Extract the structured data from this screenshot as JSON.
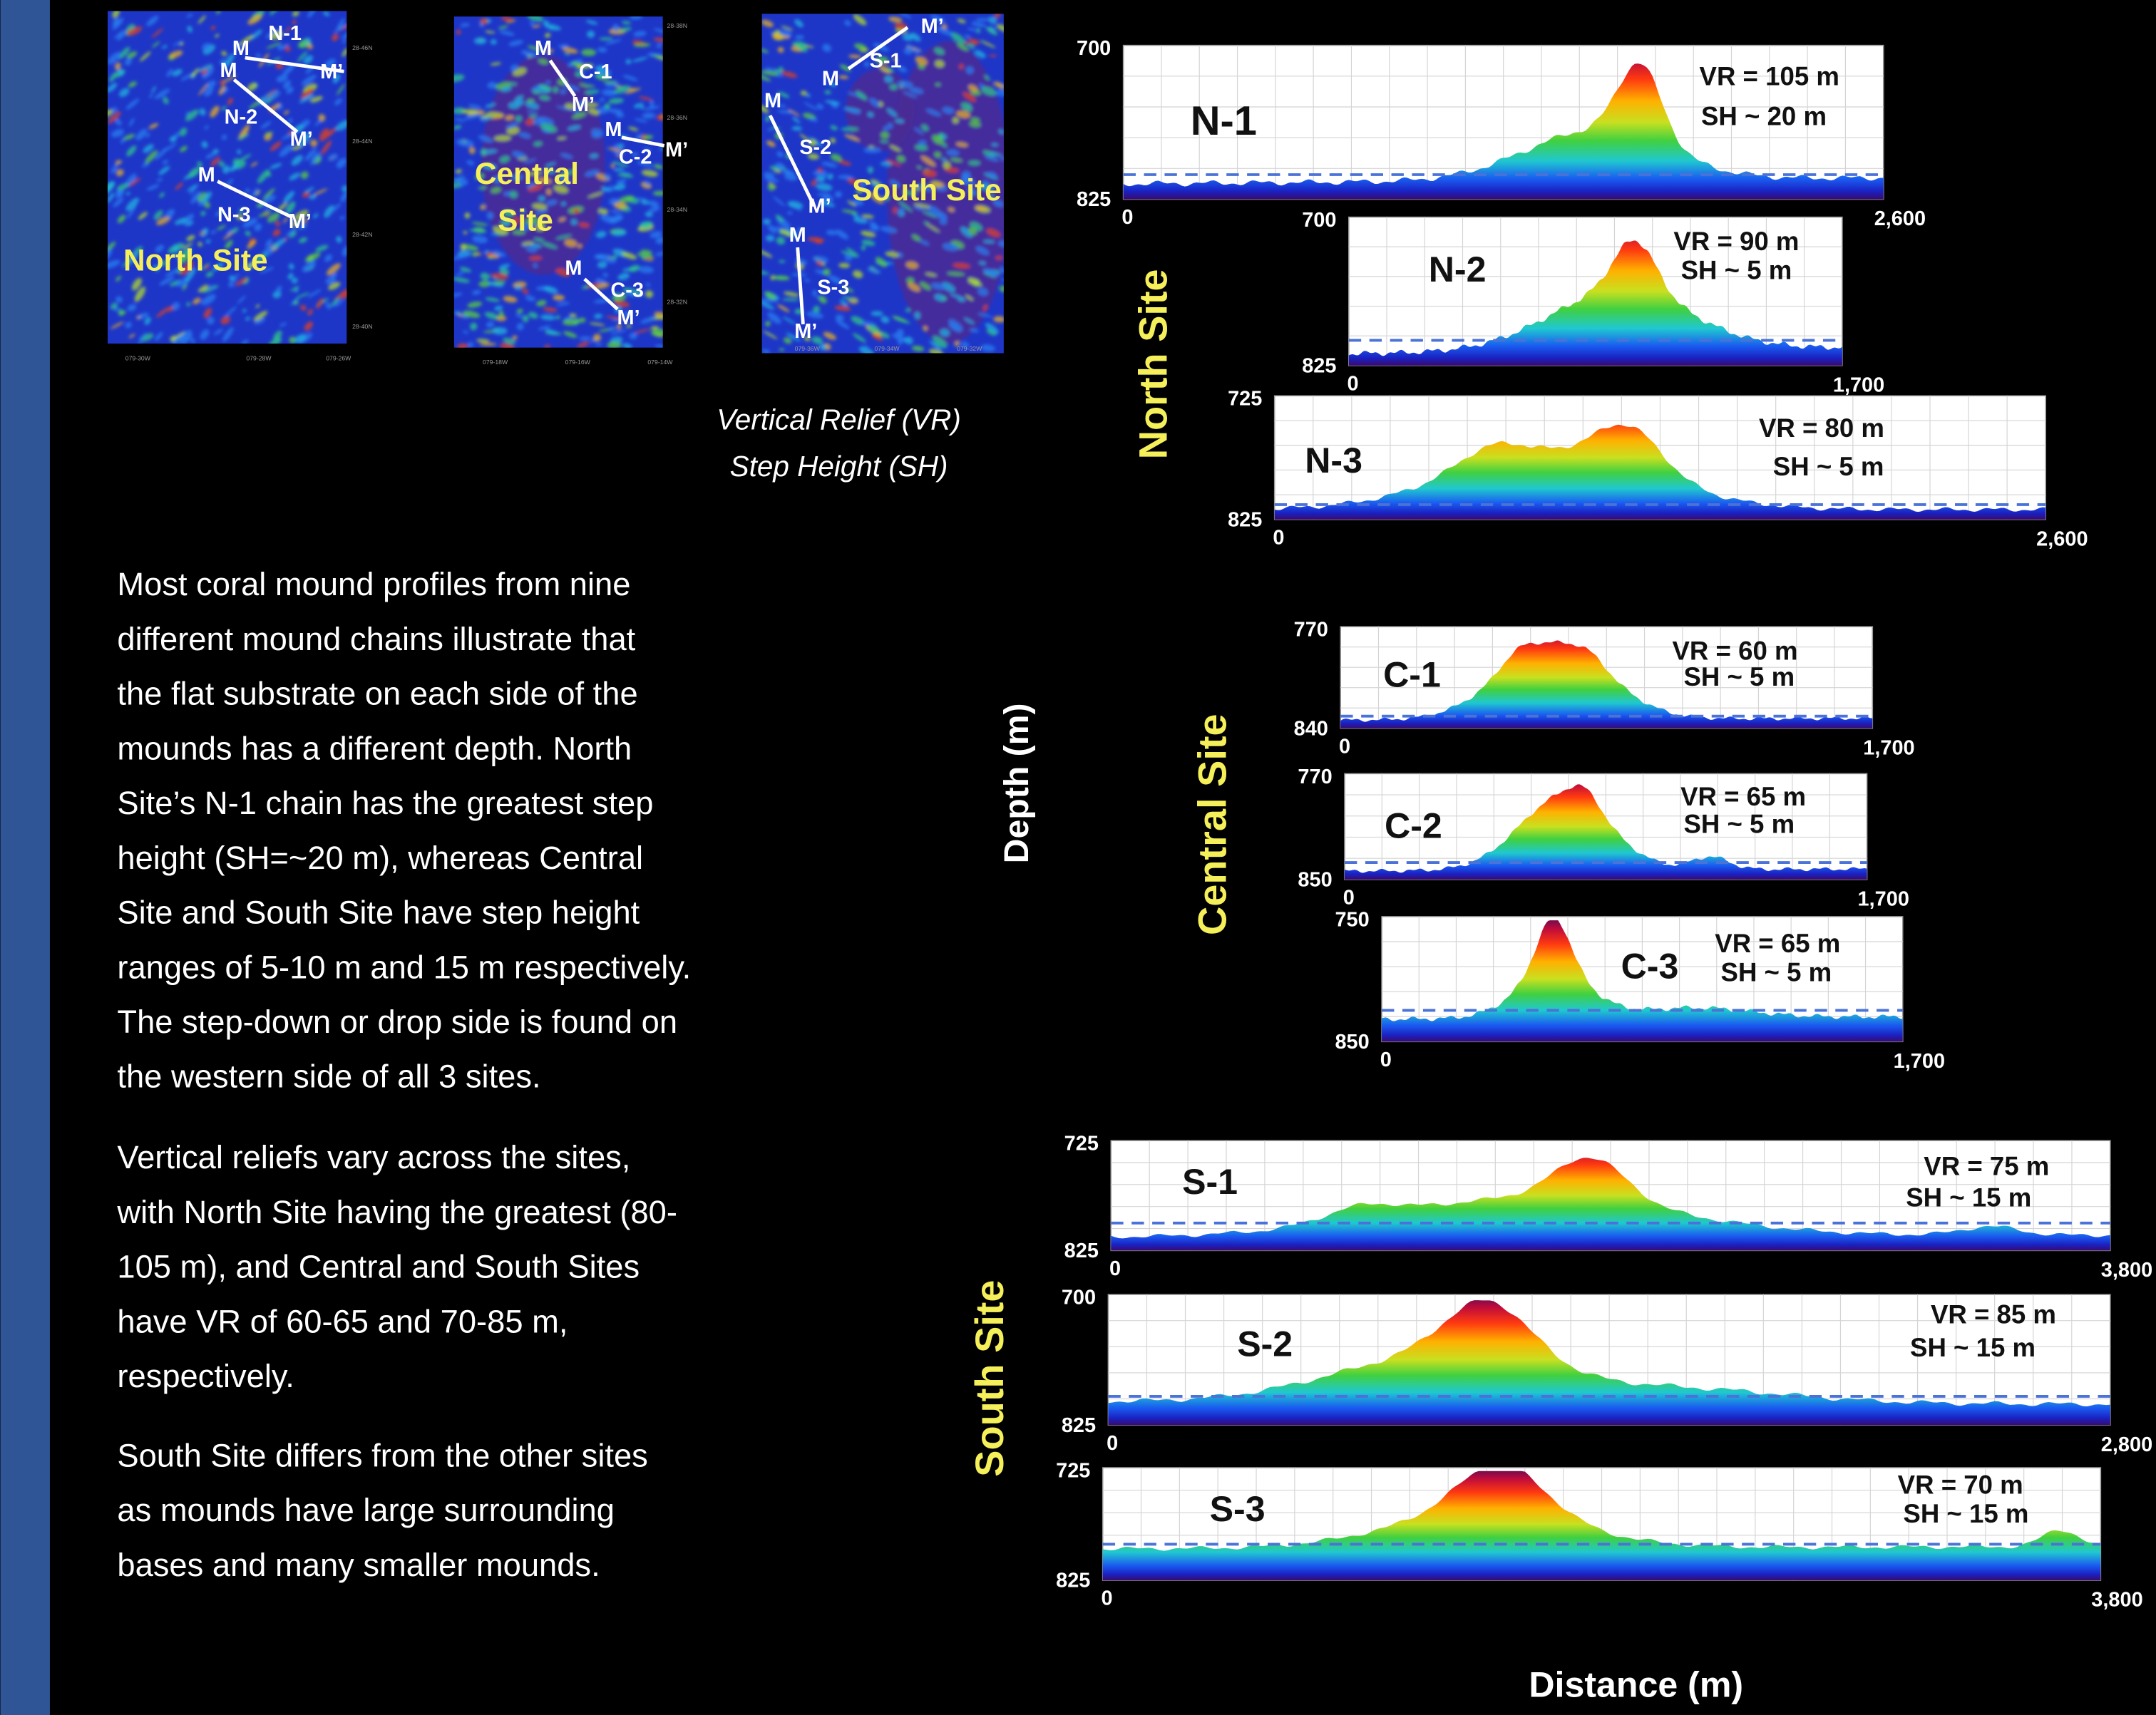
{
  "maps": [
    {
      "name": [
        "North Site"
      ],
      "labels": [
        "N-1",
        "M",
        "M",
        "M’",
        "N-2",
        "M’",
        "M",
        "N-3",
        "M’"
      ],
      "axis": [
        "28-46N",
        "28-44N",
        "28-42N",
        "28-40N",
        "079-30W",
        "079-28W",
        "079-26W"
      ]
    },
    {
      "name": [
        "Central",
        "Site"
      ],
      "labels": [
        "M",
        "C-1",
        "M’",
        "M",
        "C-2",
        "M’",
        "M",
        "C-3",
        "M’"
      ],
      "axis": [
        "28-38N",
        "28-36N",
        "28-34N",
        "28-32N",
        "079-18W",
        "079-16W",
        "079-14W"
      ]
    },
    {
      "name": [
        "South Site"
      ],
      "labels": [
        "M’",
        "M",
        "S-1",
        "M",
        "S-2",
        "M’",
        "M",
        "S-3",
        "M’"
      ],
      "axis": [
        "079-36W",
        "079-34W",
        "079-32W"
      ]
    }
  ],
  "legend": [
    "Vertical Relief (VR)",
    "Step Height (SH)"
  ],
  "paragraphs": [
    [
      "Most coral mound profiles from nine",
      "different mound chains illustrate that",
      "the flat substrate on each side of the",
      "mounds has a different depth.  North",
      "Site’s N-1 chain has the greatest step",
      "height (SH=~20 m), whereas Central",
      "Site and South Site have step height",
      "ranges of 5-10 m and 15 m respectively.",
      "The step-down or drop side is found on",
      "the western side of all 3 sites."
    ],
    [
      "Vertical reliefs vary across the sites,",
      "with North Site having the greatest (80-",
      "105 m), and Central and South Sites",
      "have VR of 60-65 and 70-85 m,",
      "respectively."
    ],
    [
      "South Site differs from the other sites",
      "as mounds have large surrounding",
      "bases and many smaller mounds."
    ]
  ],
  "axis_titles": {
    "y": "Depth (m)",
    "x": "Distance (m)"
  },
  "sites": [
    "North Site",
    "Central Site",
    "South Site"
  ],
  "profiles": [
    {
      "name": "N-1",
      "depth_top": "700",
      "depth_bottom": "825",
      "distance_start": "0",
      "distance_end": "2,600",
      "vr": "VR = 105 m",
      "sh": "SH ~ 20 m"
    },
    {
      "name": "N-2",
      "depth_top": "700",
      "depth_bottom": "825",
      "distance_start": "0",
      "distance_end": "1,700",
      "vr": "VR = 90 m",
      "sh": "SH ~ 5 m"
    },
    {
      "name": "N-3",
      "depth_top": "725",
      "depth_bottom": "825",
      "distance_start": "0",
      "distance_end": "2,600",
      "vr": "VR = 80 m",
      "sh": "SH ~ 5 m"
    },
    {
      "name": "C-1",
      "depth_top": "770",
      "depth_bottom": "840",
      "distance_start": "0",
      "distance_end": "1,700",
      "vr": "VR = 60 m",
      "sh": "SH ~ 5 m"
    },
    {
      "name": "C-2",
      "depth_top": "770",
      "depth_bottom": "850",
      "distance_start": "0",
      "distance_end": "1,700",
      "vr": "VR = 65 m",
      "sh": "SH ~ 5 m"
    },
    {
      "name": "C-3",
      "depth_top": "750",
      "depth_bottom": "850",
      "distance_start": "0",
      "distance_end": "1,700",
      "vr": "VR = 65 m",
      "sh": "SH ~ 5 m"
    },
    {
      "name": "S-1",
      "depth_top": "725",
      "depth_bottom": "825",
      "distance_start": "0",
      "distance_end": "3,800",
      "vr": "VR = 75 m",
      "sh": "SH ~ 15 m"
    },
    {
      "name": "S-2",
      "depth_top": "700",
      "depth_bottom": "825",
      "distance_start": "0",
      "distance_end": "2,800",
      "vr": "VR = 85 m",
      "sh": "SH ~ 15 m"
    },
    {
      "name": "S-3",
      "depth_top": "725",
      "depth_bottom": "825",
      "distance_start": "0",
      "distance_end": "3,800",
      "vr": "VR = 70 m",
      "sh": "SH ~ 15 m"
    }
  ]
}
